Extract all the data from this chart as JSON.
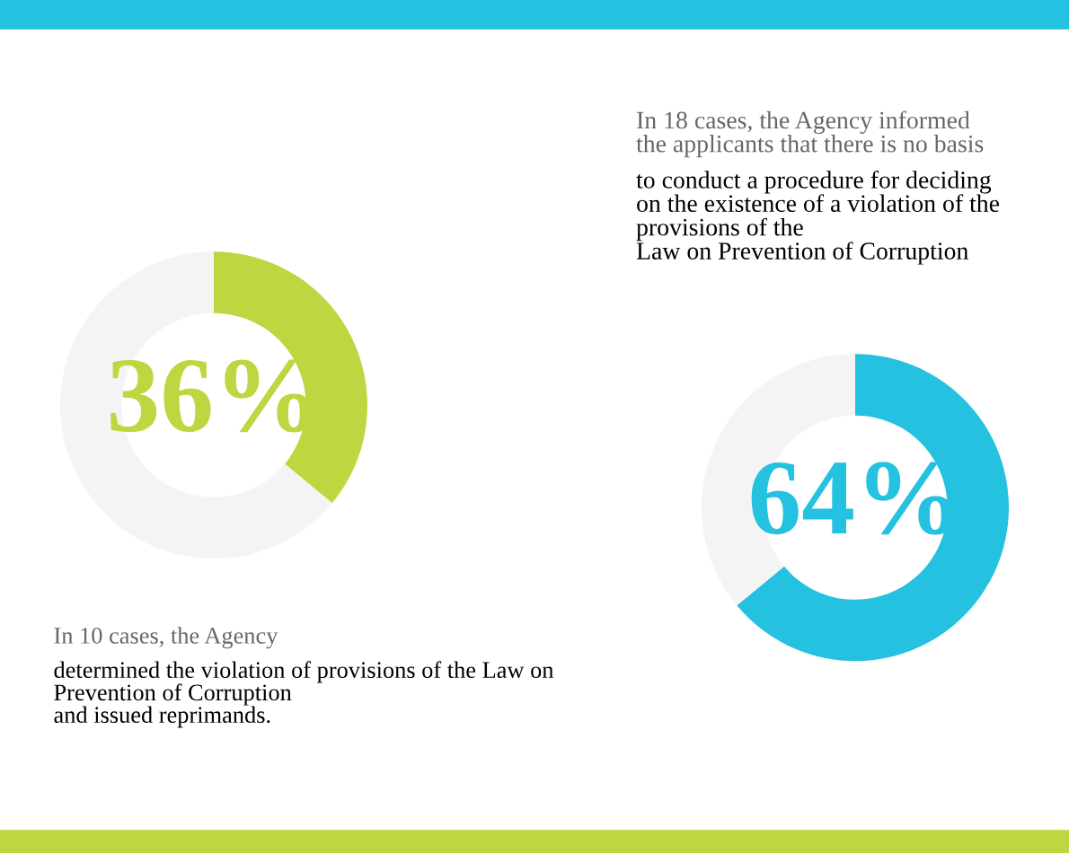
{
  "chart_data": [
    {
      "type": "donut",
      "categories": [
        null,
        null
      ],
      "values": [
        36,
        64
      ],
      "colors": [
        "#bcd73f",
        "#f4f4f4"
      ],
      "value_labels": [
        "36%",
        null
      ],
      "annotations": [
        "In 10 cases, the Agency",
        "determined the violation of provisions of the Law on\nPrevention of Corruption\nand issued reprimands."
      ]
    },
    {
      "type": "donut",
      "categories": [
        null,
        null
      ],
      "values": [
        64,
        36
      ],
      "colors": [
        "#25c1e0",
        "#f4f4f4"
      ],
      "value_labels": [
        "64%",
        null
      ],
      "annotations": [
        "In 18 cases, the Agency informed\nthe applicants that there is no basis",
        "to conduct a procedure for deciding\non the existence of a violation of the\nprovisions of the\nLaw on Prevention of Corruption"
      ]
    }
  ]
}
